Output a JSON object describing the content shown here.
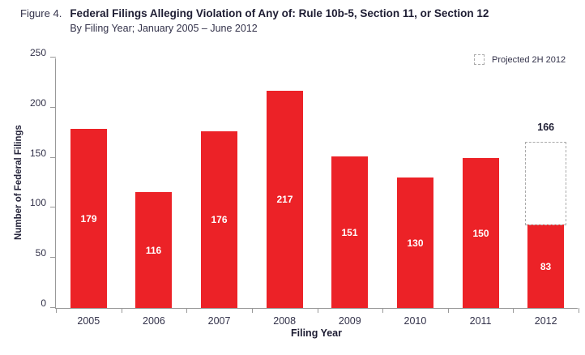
{
  "figure": {
    "label": "Figure 4.",
    "title": "Federal Filings Alleging Violation of Any of: Rule 10b-5, Section 11, or Section 12",
    "subtitle": "By Filing Year; January 2005 – June 2012"
  },
  "legend": {
    "projected_label": "Projected 2H 2012"
  },
  "chart_data": {
    "type": "bar",
    "title": "Federal Filings Alleging Violation of Any of: Rule 10b-5, Section 11, or Section 12",
    "subtitle": "By Filing Year; January 2005 – June 2012",
    "categories": [
      "2005",
      "2006",
      "2007",
      "2008",
      "2009",
      "2010",
      "2011",
      "2012"
    ],
    "values": [
      179,
      116,
      176,
      217,
      151,
      130,
      150,
      83
    ],
    "projected": {
      "category": "2012",
      "total": 166,
      "label": "Projected 2H 2012"
    },
    "xlabel": "Filing Year",
    "ylabel": "Number of Federal Filings",
    "ylim": [
      0,
      250
    ],
    "yticks": [
      0,
      50,
      100,
      150,
      200,
      250
    ],
    "grid": false,
    "legend_position": "top-right",
    "colors": {
      "bar": "#EC2227",
      "bar_label": "#FFFFFF",
      "projected_border": "#ABABAB",
      "axis": "#999999",
      "text": "#33324A"
    }
  }
}
